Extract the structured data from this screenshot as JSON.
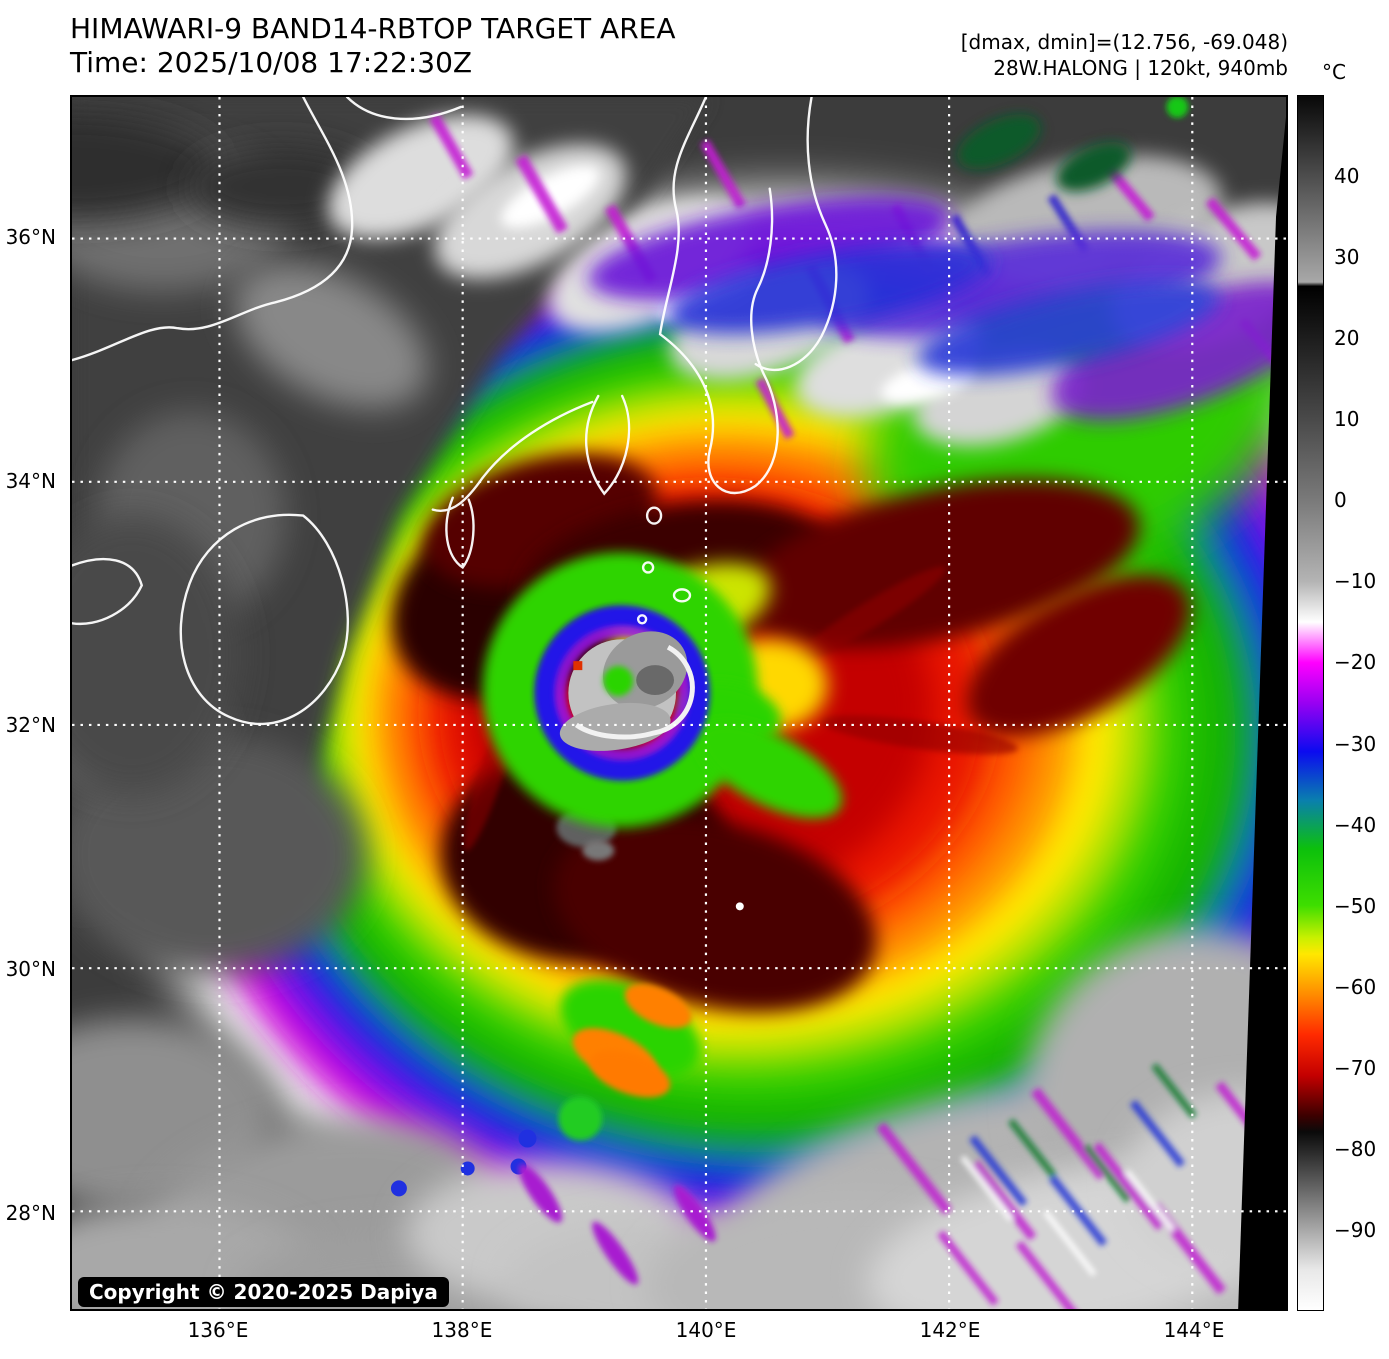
{
  "header": {
    "title": "HIMAWARI-9 BAND14-RBTOP TARGET AREA",
    "time_label": "Time: 2025/10/08 17:22:30Z",
    "dmax_dmin": "[dmax, dmin]=(12.756, -69.048)",
    "storm_info": "28W.HALONG | 120kt, 940mb"
  },
  "colorbar": {
    "unit": "°C",
    "top_value": 50,
    "bottom_value": -100,
    "ticks": [
      {
        "value": 40,
        "label": "40"
      },
      {
        "value": 30,
        "label": "30"
      },
      {
        "value": 20,
        "label": "20"
      },
      {
        "value": 10,
        "label": "10"
      },
      {
        "value": 0,
        "label": "0"
      },
      {
        "value": -10,
        "label": "−10"
      },
      {
        "value": -20,
        "label": "−20"
      },
      {
        "value": -30,
        "label": "−30"
      },
      {
        "value": -40,
        "label": "−40"
      },
      {
        "value": -50,
        "label": "−50"
      },
      {
        "value": -60,
        "label": "−60"
      },
      {
        "value": -70,
        "label": "−70"
      },
      {
        "value": -80,
        "label": "−80"
      },
      {
        "value": -90,
        "label": "−90"
      }
    ],
    "stops": [
      {
        "v": 50,
        "c": "#080808"
      },
      {
        "v": 27,
        "c": "#a8a8a8"
      },
      {
        "v": 26.5,
        "c": "#000000"
      },
      {
        "v": 10,
        "c": "#4a4a4a"
      },
      {
        "v": 0,
        "c": "#7a7a7a"
      },
      {
        "v": -10,
        "c": "#b4b4b4"
      },
      {
        "v": -15,
        "c": "#ffffff"
      },
      {
        "v": -20,
        "c": "#ff00ff"
      },
      {
        "v": -25,
        "c": "#9900f2"
      },
      {
        "v": -31,
        "c": "#0b0bf0"
      },
      {
        "v": -37,
        "c": "#0a7fae"
      },
      {
        "v": -43,
        "c": "#0cc00c"
      },
      {
        "v": -50,
        "c": "#3ede00"
      },
      {
        "v": -54,
        "c": "#c8f000"
      },
      {
        "v": -56,
        "c": "#ffe800"
      },
      {
        "v": -61,
        "c": "#ff8c00"
      },
      {
        "v": -66,
        "c": "#ff2a00"
      },
      {
        "v": -71,
        "c": "#c40000"
      },
      {
        "v": -76,
        "c": "#3c0000"
      },
      {
        "v": -78,
        "c": "#0a0a0a"
      },
      {
        "v": -95,
        "c": "#e8e8e8"
      },
      {
        "v": -100,
        "c": "#ffffff"
      }
    ]
  },
  "map": {
    "lat_ticks": [
      {
        "label": "36°N"
      },
      {
        "label": "34°N"
      },
      {
        "label": "32°N"
      },
      {
        "label": "30°N"
      },
      {
        "label": "28°N"
      }
    ],
    "lon_ticks": [
      {
        "label": "136°E"
      },
      {
        "label": "138°E"
      },
      {
        "label": "140°E"
      },
      {
        "label": "142°E"
      },
      {
        "label": "144°E"
      }
    ],
    "copyright": "Copyright © 2020-2025 Dapiya"
  }
}
